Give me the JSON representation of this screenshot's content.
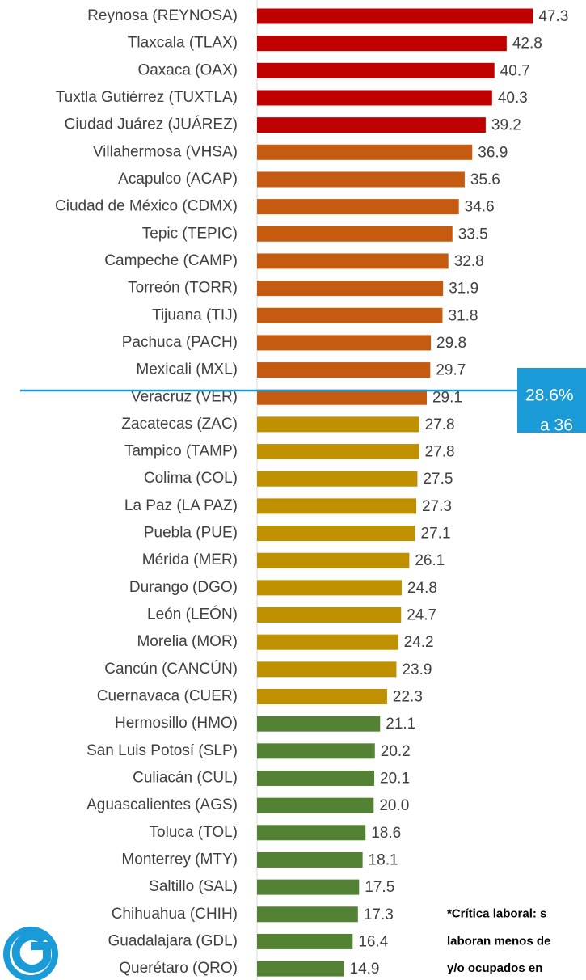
{
  "chart_data": {
    "type": "bar",
    "orientation": "horizontal",
    "categories": [
      "Reynosa (REYNOSA)",
      "Tlaxcala (TLAX)",
      "Oaxaca (OAX)",
      "Tuxtla Gutiérrez (TUXTLA)",
      "Ciudad Juárez (JUÁREZ)",
      "Villahermosa (VHSA)",
      "Acapulco (ACAP)",
      "Ciudad de México (CDMX)",
      "Tepic (TEPIC)",
      "Campeche (CAMP)",
      "Torreón (TORR)",
      "Tijuana (TIJ)",
      "Pachuca (PACH)",
      "Mexicali (MXL)",
      "Veracruz (VER)",
      "Zacatecas (ZAC)",
      "Tampico (TAMP)",
      "Colima (COL)",
      "La Paz (LA PAZ)",
      "Puebla (PUE)",
      "Mérida (MER)",
      "Durango (DGO)",
      "León (LEÓN)",
      "Morelia (MOR)",
      "Cancún (CANCÚN)",
      "Cuernavaca (CUER)",
      "Hermosillo (HMO)",
      "San Luis Potosí (SLP)",
      "Culiacán (CUL)",
      "Aguascalientes (AGS)",
      "Toluca (TOL)",
      "Monterrey (MTY)",
      "Saltillo (SAL)",
      "Chihuahua (CHIH)",
      "Guadalajara (GDL)",
      "Querétaro (QRO)"
    ],
    "values": [
      47.3,
      42.8,
      40.7,
      40.3,
      39.2,
      36.9,
      35.6,
      34.6,
      33.5,
      32.8,
      31.9,
      31.8,
      29.8,
      29.7,
      29.1,
      27.8,
      27.8,
      27.5,
      27.3,
      27.1,
      26.1,
      24.8,
      24.7,
      24.2,
      23.9,
      22.3,
      21.1,
      20.2,
      20.1,
      20.0,
      18.6,
      18.1,
      17.5,
      17.3,
      16.4,
      14.9
    ],
    "value_labels": [
      "47.3",
      "42.8",
      "40.7",
      "40.3",
      "39.2",
      "36.9",
      "35.6",
      "34.6",
      "33.5",
      "32.8",
      "31.9",
      "31.8",
      "29.8",
      "29.7",
      "29.1",
      "27.8",
      "27.8",
      "27.5",
      "27.3",
      "27.1",
      "26.1",
      "24.8",
      "24.7",
      "24.2",
      "23.9",
      "22.3",
      "21.1",
      "20.2",
      "20.1",
      "20.0",
      "18.6",
      "18.1",
      "17.5",
      "17.3",
      "16.4",
      "14.9"
    ],
    "colors": [
      "#c00000",
      "#c00000",
      "#c00000",
      "#c00000",
      "#c00000",
      "#c55a11",
      "#c55a11",
      "#c55a11",
      "#c55a11",
      "#c55a11",
      "#c55a11",
      "#c55a11",
      "#c55a11",
      "#c55a11",
      "#c55a11",
      "#bf9000",
      "#bf9000",
      "#bf9000",
      "#bf9000",
      "#bf9000",
      "#bf9000",
      "#bf9000",
      "#bf9000",
      "#bf9000",
      "#bf9000",
      "#bf9000",
      "#548235",
      "#548235",
      "#548235",
      "#548235",
      "#548235",
      "#548235",
      "#548235",
      "#548235",
      "#548235",
      "#548235"
    ],
    "xlim": [
      0,
      56.4
    ],
    "callout": [
      "28.6%",
      "a 36"
    ],
    "footnote": [
      "*Crítica laboral: s",
      "laboran menos de",
      "y/o ocupados en"
    ]
  }
}
